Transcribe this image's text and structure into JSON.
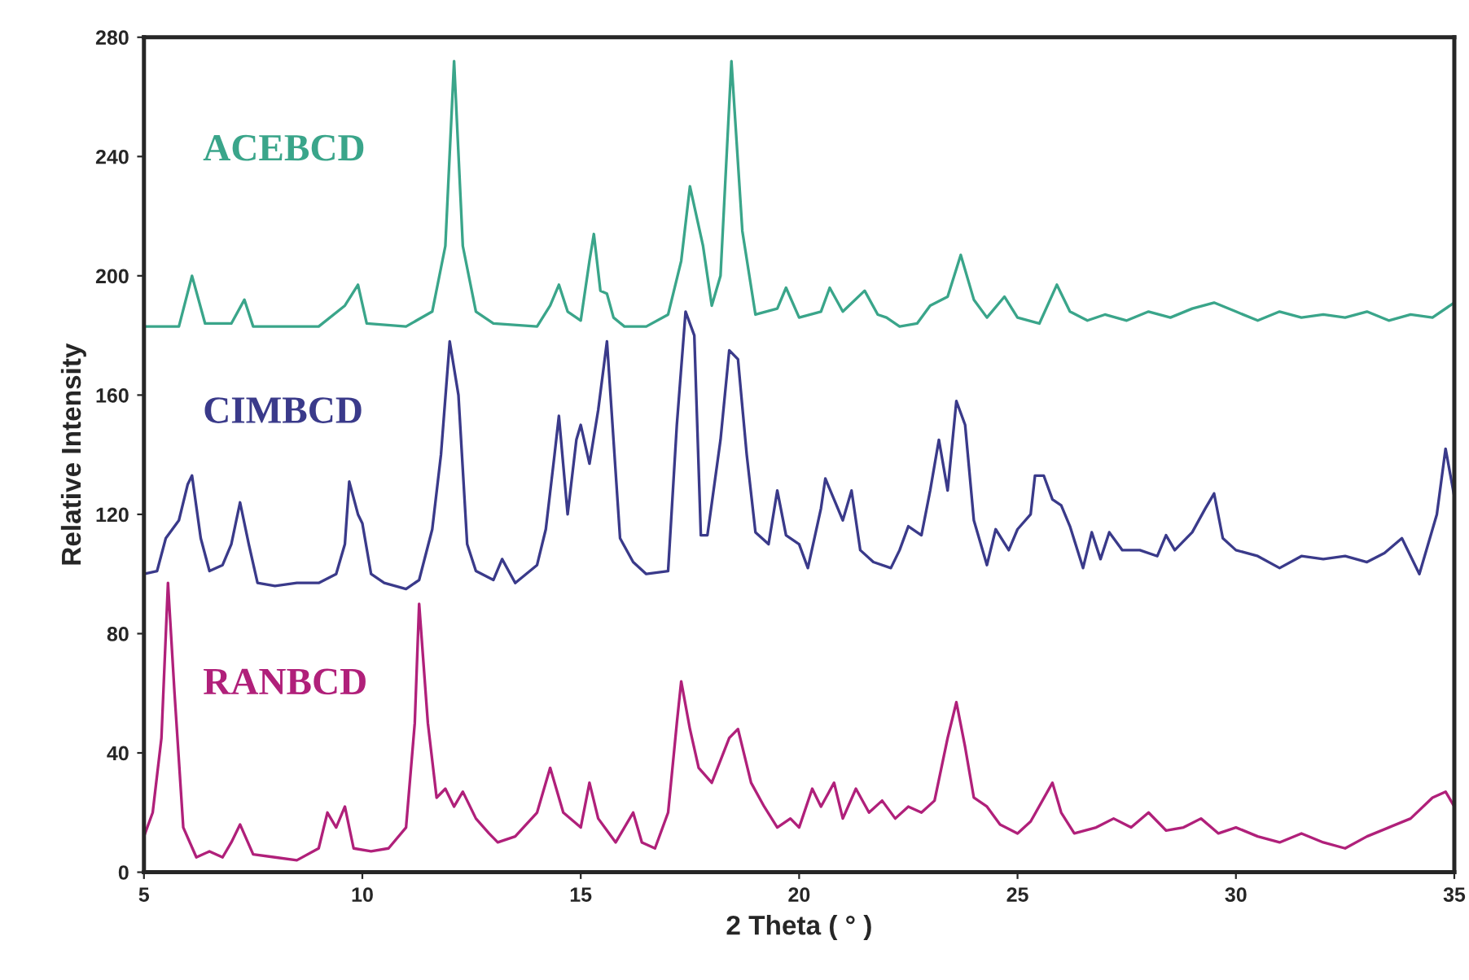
{
  "chart_data": {
    "type": "line",
    "xlabel": "2 Theta ( ° )",
    "ylabel": "Relative Intensity",
    "xlim": [
      5,
      35
    ],
    "xticks": [
      5,
      10,
      15,
      20,
      25,
      30,
      35
    ],
    "ylim": [
      0,
      280
    ],
    "yticks": [
      0,
      40,
      80,
      120,
      160,
      200,
      240,
      280
    ],
    "grid": false,
    "legend": false,
    "series": [
      {
        "name": "ACEBCD",
        "color": "#3aa58a",
        "x": [
          5.0,
          5.8,
          6.1,
          6.4,
          7.0,
          7.3,
          7.5,
          9.0,
          9.6,
          9.9,
          10.1,
          11.0,
          11.6,
          11.9,
          12.1,
          12.3,
          12.6,
          13.0,
          14.0,
          14.3,
          14.5,
          14.7,
          15.0,
          15.2,
          15.3,
          15.45,
          15.6,
          15.75,
          16.0,
          16.5,
          17.0,
          17.3,
          17.5,
          17.8,
          18.0,
          18.2,
          18.45,
          18.7,
          19.0,
          19.5,
          19.7,
          20.0,
          20.5,
          20.7,
          21.0,
          21.5,
          21.8,
          22.0,
          22.3,
          22.7,
          23.0,
          23.4,
          23.7,
          24.0,
          24.3,
          24.7,
          25.0,
          25.5,
          25.9,
          26.2,
          26.6,
          27.0,
          27.5,
          28.0,
          28.5,
          29.0,
          29.5,
          30.0,
          30.5,
          31.0,
          31.5,
          32.0,
          32.5,
          33.0,
          33.5,
          34.0,
          34.5,
          35.0
        ],
        "values": [
          183,
          183,
          200,
          184,
          184,
          192,
          183,
          183,
          190,
          197,
          184,
          183,
          188,
          210,
          272,
          210,
          188,
          184,
          183,
          190,
          197,
          188,
          185,
          205,
          214,
          195,
          194,
          186,
          183,
          183,
          187,
          205,
          230,
          210,
          190,
          200,
          272,
          215,
          187,
          189,
          196,
          186,
          188,
          196,
          188,
          195,
          187,
          186,
          183,
          184,
          190,
          193,
          207,
          192,
          186,
          193,
          186,
          184,
          197,
          188,
          185,
          187,
          185,
          188,
          186,
          189,
          191,
          188,
          185,
          188,
          186,
          187,
          186,
          188,
          185,
          187,
          186,
          191
        ]
      },
      {
        "name": "CIMBCD",
        "color": "#3a3a8a",
        "x": [
          5.0,
          5.3,
          5.5,
          5.8,
          6.0,
          6.1,
          6.3,
          6.5,
          6.8,
          7.0,
          7.2,
          7.4,
          7.6,
          8.0,
          8.5,
          9.0,
          9.4,
          9.6,
          9.7,
          9.9,
          10.0,
          10.2,
          10.5,
          11.0,
          11.3,
          11.6,
          11.8,
          12.0,
          12.2,
          12.4,
          12.6,
          13.0,
          13.2,
          13.5,
          14.0,
          14.2,
          14.4,
          14.5,
          14.7,
          14.9,
          15.0,
          15.2,
          15.4,
          15.6,
          15.75,
          15.9,
          16.2,
          16.5,
          17.0,
          17.2,
          17.4,
          17.6,
          17.75,
          17.9,
          18.2,
          18.4,
          18.6,
          18.8,
          19.0,
          19.3,
          19.5,
          19.7,
          20.0,
          20.2,
          20.5,
          20.6,
          20.8,
          21.0,
          21.2,
          21.4,
          21.7,
          22.1,
          22.3,
          22.5,
          22.8,
          23.0,
          23.2,
          23.4,
          23.6,
          23.8,
          24.0,
          24.3,
          24.5,
          24.8,
          25.0,
          25.3,
          25.4,
          25.6,
          25.8,
          26.0,
          26.2,
          26.5,
          26.7,
          26.9,
          27.1,
          27.4,
          27.8,
          28.2,
          28.4,
          28.6,
          29.0,
          29.3,
          29.5,
          29.7,
          30.0,
          30.5,
          31.0,
          31.5,
          32.0,
          32.5,
          33.0,
          33.4,
          33.8,
          34.2,
          34.6,
          34.8,
          35.0
        ],
        "values": [
          100,
          101,
          112,
          118,
          130,
          133,
          112,
          101,
          103,
          110,
          124,
          110,
          97,
          96,
          97,
          97,
          100,
          110,
          131,
          120,
          117,
          100,
          97,
          95,
          98,
          115,
          140,
          178,
          160,
          110,
          101,
          98,
          105,
          97,
          103,
          115,
          140,
          153,
          120,
          145,
          150,
          137,
          155,
          178,
          145,
          112,
          104,
          100,
          101,
          150,
          188,
          180,
          113,
          113,
          145,
          175,
          172,
          140,
          114,
          110,
          128,
          113,
          110,
          102,
          122,
          132,
          125,
          118,
          128,
          108,
          104,
          102,
          108,
          116,
          113,
          128,
          145,
          128,
          158,
          150,
          118,
          103,
          115,
          108,
          115,
          120,
          133,
          133,
          125,
          123,
          116,
          102,
          114,
          105,
          114,
          108,
          108,
          106,
          113,
          108,
          114,
          122,
          127,
          112,
          108,
          106,
          102,
          106,
          105,
          106,
          104,
          107,
          112,
          100,
          120,
          142,
          126
        ]
      },
      {
        "name": "RANBCD",
        "color": "#b0207a",
        "x": [
          5.0,
          5.2,
          5.4,
          5.55,
          5.7,
          5.9,
          6.2,
          6.5,
          6.8,
          7.0,
          7.2,
          7.5,
          8.0,
          8.5,
          9.0,
          9.2,
          9.4,
          9.6,
          9.8,
          10.2,
          10.6,
          11.0,
          11.2,
          11.3,
          11.5,
          11.7,
          11.9,
          12.1,
          12.3,
          12.6,
          12.9,
          13.1,
          13.5,
          14.0,
          14.3,
          14.6,
          15.0,
          15.2,
          15.4,
          15.8,
          16.2,
          16.4,
          16.7,
          17.0,
          17.2,
          17.3,
          17.5,
          17.7,
          18.0,
          18.4,
          18.6,
          18.9,
          19.2,
          19.5,
          19.8,
          20.0,
          20.3,
          20.5,
          20.8,
          21.0,
          21.3,
          21.6,
          21.9,
          22.2,
          22.5,
          22.8,
          23.1,
          23.4,
          23.6,
          23.8,
          24.0,
          24.3,
          24.6,
          25.0,
          25.3,
          25.8,
          26.0,
          26.3,
          26.8,
          27.2,
          27.6,
          28.0,
          28.4,
          28.8,
          29.2,
          29.6,
          30.0,
          30.5,
          31.0,
          31.5,
          32.0,
          32.5,
          33.0,
          33.5,
          34.0,
          34.5,
          34.8,
          35.0
        ],
        "values": [
          12,
          20,
          45,
          97,
          60,
          15,
          5,
          7,
          5,
          10,
          16,
          6,
          5,
          4,
          8,
          20,
          15,
          22,
          8,
          7,
          8,
          15,
          50,
          90,
          50,
          25,
          28,
          22,
          27,
          18,
          13,
          10,
          12,
          20,
          35,
          20,
          15,
          30,
          18,
          10,
          20,
          10,
          8,
          20,
          50,
          64,
          48,
          35,
          30,
          45,
          48,
          30,
          22,
          15,
          18,
          15,
          28,
          22,
          30,
          18,
          28,
          20,
          24,
          18,
          22,
          20,
          24,
          45,
          57,
          42,
          25,
          22,
          16,
          13,
          17,
          30,
          20,
          13,
          15,
          18,
          15,
          20,
          14,
          15,
          18,
          13,
          15,
          12,
          10,
          13,
          10,
          8,
          12,
          15,
          18,
          25,
          27,
          22
        ]
      }
    ]
  }
}
